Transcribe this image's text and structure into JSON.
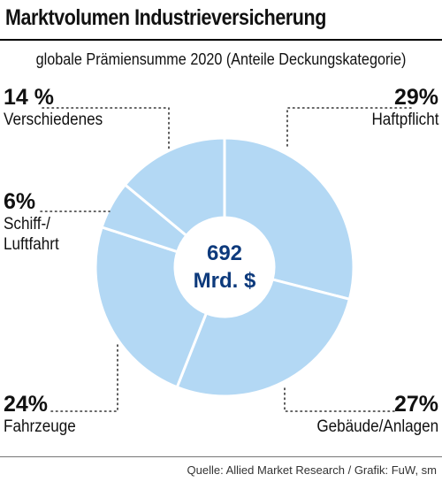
{
  "header": {
    "title": "Marktvolumen Industrieversicherung",
    "subtitle": "globale Prämiensumme 2020 (Anteile Deckungskategorie)"
  },
  "chart_data": {
    "type": "pie",
    "variant": "donut",
    "total_value": "692",
    "total_unit": "Mrd. $",
    "slices": [
      {
        "label": "Haftpflicht",
        "value": 29,
        "value_label": "29%"
      },
      {
        "label": "Gebäude/Anlagen",
        "value": 27,
        "value_label": "27%"
      },
      {
        "label": "Fahrzeuge",
        "value": 24,
        "value_label": "24%"
      },
      {
        "label": "Schiff-/ Luftfahrt",
        "value": 6,
        "value_label": "6%"
      },
      {
        "label": "Verschiedenes",
        "value": 14,
        "value_label": "14 %"
      }
    ],
    "colors": {
      "slice": "#b3d8f4",
      "separator": "#ffffff",
      "center_text": "#0d3a7c"
    }
  },
  "footer": {
    "source": "Quelle: Allied Market Research / Grafik: FuW, sm"
  }
}
